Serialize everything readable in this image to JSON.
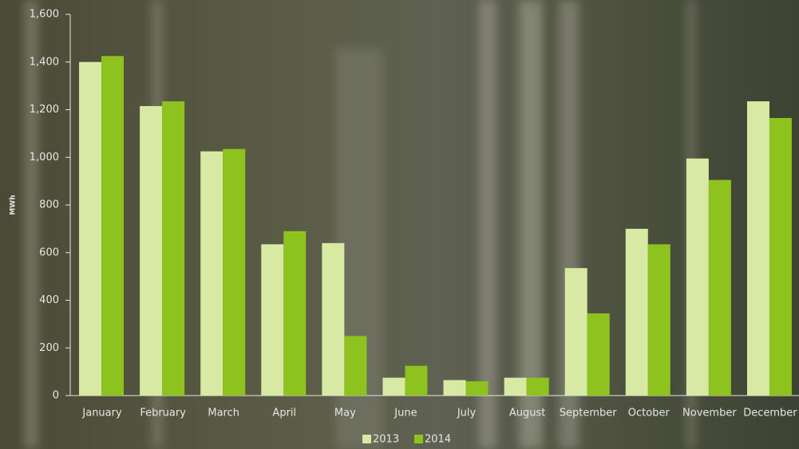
{
  "chart_data": {
    "type": "bar",
    "y_label": "MWh",
    "categories": [
      "January",
      "February",
      "March",
      "April",
      "May",
      "June",
      "July",
      "August",
      "September",
      "October",
      "November",
      "December"
    ],
    "series": [
      {
        "name": "2013",
        "color": "#d8e9a3",
        "values": [
          1400,
          1215,
          1025,
          635,
          640,
          75,
          65,
          75,
          535,
          700,
          995,
          1235
        ]
      },
      {
        "name": "2014",
        "color": "#8dc21f",
        "values": [
          1425,
          1235,
          1035,
          690,
          250,
          125,
          60,
          75,
          345,
          635,
          905,
          1165
        ]
      }
    ],
    "ylim": [
      0,
      1600
    ],
    "yticks": [
      0,
      200,
      400,
      600,
      800,
      {
        "value": 1000,
        "label": "1,000"
      },
      {
        "value": 1200,
        "label": "1,200"
      },
      {
        "value": 1400,
        "label": "1,400"
      },
      {
        "value": 1600,
        "label": "1,600"
      }
    ],
    "legend": "bottom"
  }
}
